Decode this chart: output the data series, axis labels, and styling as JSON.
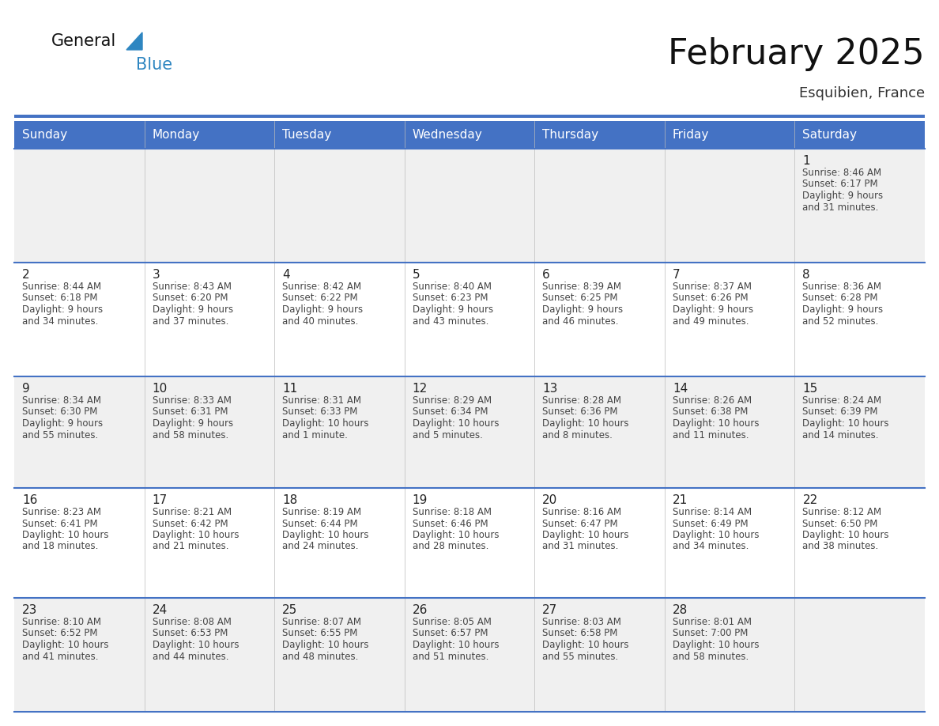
{
  "title": "February 2025",
  "subtitle": "Esquibien, France",
  "days_of_week": [
    "Sunday",
    "Monday",
    "Tuesday",
    "Wednesday",
    "Thursday",
    "Friday",
    "Saturday"
  ],
  "header_bg": "#4472C4",
  "header_text": "#FFFFFF",
  "row_bg_odd": "#F0F0F0",
  "row_bg_even": "#FFFFFF",
  "cell_border_color": "#4472C4",
  "day_number_color": "#222222",
  "info_text_color": "#444444",
  "title_color": "#111111",
  "subtitle_color": "#333333",
  "logo_general_color": "#111111",
  "logo_blue_color": "#2E86C1",
  "calendar_data": [
    [
      null,
      null,
      null,
      null,
      null,
      null,
      {
        "day": "1",
        "sunrise": "8:46 AM",
        "sunset": "6:17 PM",
        "daylight1": "Daylight: 9 hours",
        "daylight2": "and 31 minutes."
      }
    ],
    [
      {
        "day": "2",
        "sunrise": "8:44 AM",
        "sunset": "6:18 PM",
        "daylight1": "Daylight: 9 hours",
        "daylight2": "and 34 minutes."
      },
      {
        "day": "3",
        "sunrise": "8:43 AM",
        "sunset": "6:20 PM",
        "daylight1": "Daylight: 9 hours",
        "daylight2": "and 37 minutes."
      },
      {
        "day": "4",
        "sunrise": "8:42 AM",
        "sunset": "6:22 PM",
        "daylight1": "Daylight: 9 hours",
        "daylight2": "and 40 minutes."
      },
      {
        "day": "5",
        "sunrise": "8:40 AM",
        "sunset": "6:23 PM",
        "daylight1": "Daylight: 9 hours",
        "daylight2": "and 43 minutes."
      },
      {
        "day": "6",
        "sunrise": "8:39 AM",
        "sunset": "6:25 PM",
        "daylight1": "Daylight: 9 hours",
        "daylight2": "and 46 minutes."
      },
      {
        "day": "7",
        "sunrise": "8:37 AM",
        "sunset": "6:26 PM",
        "daylight1": "Daylight: 9 hours",
        "daylight2": "and 49 minutes."
      },
      {
        "day": "8",
        "sunrise": "8:36 AM",
        "sunset": "6:28 PM",
        "daylight1": "Daylight: 9 hours",
        "daylight2": "and 52 minutes."
      }
    ],
    [
      {
        "day": "9",
        "sunrise": "8:34 AM",
        "sunset": "6:30 PM",
        "daylight1": "Daylight: 9 hours",
        "daylight2": "and 55 minutes."
      },
      {
        "day": "10",
        "sunrise": "8:33 AM",
        "sunset": "6:31 PM",
        "daylight1": "Daylight: 9 hours",
        "daylight2": "and 58 minutes."
      },
      {
        "day": "11",
        "sunrise": "8:31 AM",
        "sunset": "6:33 PM",
        "daylight1": "Daylight: 10 hours",
        "daylight2": "and 1 minute."
      },
      {
        "day": "12",
        "sunrise": "8:29 AM",
        "sunset": "6:34 PM",
        "daylight1": "Daylight: 10 hours",
        "daylight2": "and 5 minutes."
      },
      {
        "day": "13",
        "sunrise": "8:28 AM",
        "sunset": "6:36 PM",
        "daylight1": "Daylight: 10 hours",
        "daylight2": "and 8 minutes."
      },
      {
        "day": "14",
        "sunrise": "8:26 AM",
        "sunset": "6:38 PM",
        "daylight1": "Daylight: 10 hours",
        "daylight2": "and 11 minutes."
      },
      {
        "day": "15",
        "sunrise": "8:24 AM",
        "sunset": "6:39 PM",
        "daylight1": "Daylight: 10 hours",
        "daylight2": "and 14 minutes."
      }
    ],
    [
      {
        "day": "16",
        "sunrise": "8:23 AM",
        "sunset": "6:41 PM",
        "daylight1": "Daylight: 10 hours",
        "daylight2": "and 18 minutes."
      },
      {
        "day": "17",
        "sunrise": "8:21 AM",
        "sunset": "6:42 PM",
        "daylight1": "Daylight: 10 hours",
        "daylight2": "and 21 minutes."
      },
      {
        "day": "18",
        "sunrise": "8:19 AM",
        "sunset": "6:44 PM",
        "daylight1": "Daylight: 10 hours",
        "daylight2": "and 24 minutes."
      },
      {
        "day": "19",
        "sunrise": "8:18 AM",
        "sunset": "6:46 PM",
        "daylight1": "Daylight: 10 hours",
        "daylight2": "and 28 minutes."
      },
      {
        "day": "20",
        "sunrise": "8:16 AM",
        "sunset": "6:47 PM",
        "daylight1": "Daylight: 10 hours",
        "daylight2": "and 31 minutes."
      },
      {
        "day": "21",
        "sunrise": "8:14 AM",
        "sunset": "6:49 PM",
        "daylight1": "Daylight: 10 hours",
        "daylight2": "and 34 minutes."
      },
      {
        "day": "22",
        "sunrise": "8:12 AM",
        "sunset": "6:50 PM",
        "daylight1": "Daylight: 10 hours",
        "daylight2": "and 38 minutes."
      }
    ],
    [
      {
        "day": "23",
        "sunrise": "8:10 AM",
        "sunset": "6:52 PM",
        "daylight1": "Daylight: 10 hours",
        "daylight2": "and 41 minutes."
      },
      {
        "day": "24",
        "sunrise": "8:08 AM",
        "sunset": "6:53 PM",
        "daylight1": "Daylight: 10 hours",
        "daylight2": "and 44 minutes."
      },
      {
        "day": "25",
        "sunrise": "8:07 AM",
        "sunset": "6:55 PM",
        "daylight1": "Daylight: 10 hours",
        "daylight2": "and 48 minutes."
      },
      {
        "day": "26",
        "sunrise": "8:05 AM",
        "sunset": "6:57 PM",
        "daylight1": "Daylight: 10 hours",
        "daylight2": "and 51 minutes."
      },
      {
        "day": "27",
        "sunrise": "8:03 AM",
        "sunset": "6:58 PM",
        "daylight1": "Daylight: 10 hours",
        "daylight2": "and 55 minutes."
      },
      {
        "day": "28",
        "sunrise": "8:01 AM",
        "sunset": "7:00 PM",
        "daylight1": "Daylight: 10 hours",
        "daylight2": "and 58 minutes."
      },
      null
    ]
  ]
}
